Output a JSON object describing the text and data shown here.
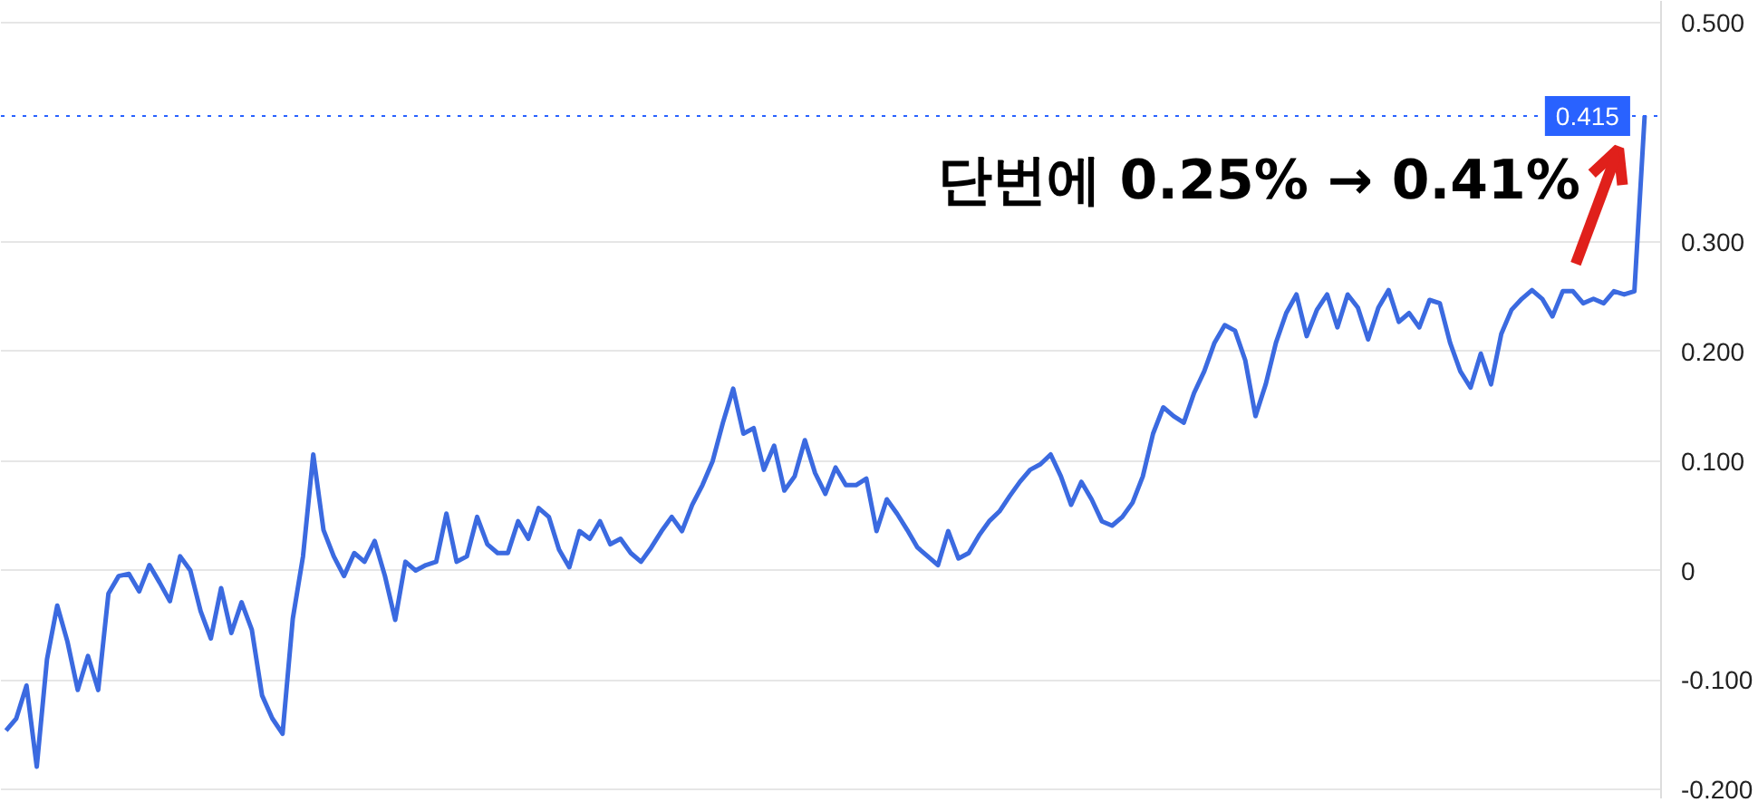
{
  "chart_data": {
    "type": "line",
    "categories": [
      null,
      null,
      null,
      null,
      null,
      null,
      null,
      null,
      null,
      null,
      null,
      null,
      null,
      null,
      null,
      null,
      null,
      null,
      null,
      null,
      null,
      null,
      null,
      null,
      null,
      null,
      null,
      null,
      null,
      null,
      null,
      null,
      null,
      null,
      null,
      null,
      null,
      null,
      null,
      null,
      null,
      null,
      null,
      null,
      null,
      null,
      null,
      null,
      null,
      null,
      null,
      null,
      null,
      null,
      null,
      null,
      null,
      null,
      null,
      null,
      null,
      null,
      null,
      null,
      null,
      null,
      null,
      null,
      null,
      null,
      null,
      null,
      null,
      null,
      null,
      null,
      null,
      null,
      null,
      null,
      null,
      null,
      null,
      null,
      null,
      null,
      null,
      null,
      null,
      null,
      null,
      null,
      null,
      null,
      null,
      null,
      null,
      null,
      null,
      null,
      null,
      null,
      null,
      null,
      null,
      null,
      null,
      null,
      null,
      null,
      null,
      null,
      null,
      null,
      null,
      null,
      null,
      null,
      null,
      null,
      null,
      null,
      null,
      null,
      null,
      null,
      null,
      null,
      null,
      null,
      null,
      null,
      null,
      null,
      null,
      null,
      null,
      null,
      null,
      null,
      null,
      null,
      null,
      null,
      null,
      null,
      null,
      null,
      null,
      null,
      null,
      null,
      null,
      null,
      null,
      null,
      null,
      null,
      null,
      null,
      null
    ],
    "series": [
      {
        "color": "#3b6ae0",
        "values": [
          -0.146,
          -0.135,
          -0.105,
          -0.179,
          -0.081,
          -0.032,
          -0.065,
          -0.109,
          -0.078,
          -0.109,
          -0.021,
          -0.005,
          -0.003,
          -0.019,
          0.005,
          -0.011,
          -0.028,
          0.013,
          0.0,
          -0.037,
          -0.062,
          -0.016,
          -0.057,
          -0.029,
          -0.054,
          -0.114,
          -0.135,
          -0.149,
          -0.044,
          0.013,
          0.106,
          0.037,
          0.013,
          -0.005,
          0.016,
          0.008,
          0.027,
          -0.005,
          -0.045,
          0.008,
          0.0,
          0.005,
          0.008,
          0.052,
          0.008,
          0.013,
          0.049,
          0.024,
          0.016,
          0.016,
          0.045,
          0.029,
          0.057,
          0.049,
          0.019,
          0.003,
          0.036,
          0.029,
          0.045,
          0.024,
          0.029,
          0.016,
          0.008,
          0.021,
          0.036,
          0.049,
          0.036,
          0.06,
          0.078,
          0.1,
          0.135,
          0.166,
          0.125,
          0.13,
          0.092,
          0.114,
          0.073,
          0.086,
          0.119,
          0.089,
          0.07,
          0.094,
          0.078,
          0.078,
          0.084,
          0.036,
          0.065,
          0.052,
          0.037,
          0.021,
          0.013,
          0.005,
          0.036,
          0.011,
          0.016,
          0.032,
          0.045,
          0.054,
          0.068,
          0.081,
          0.092,
          0.097,
          0.106,
          0.086,
          0.06,
          0.081,
          0.065,
          0.045,
          0.041,
          0.049,
          0.062,
          0.086,
          0.125,
          0.149,
          0.141,
          0.135,
          0.162,
          0.182,
          0.208,
          0.224,
          0.219,
          0.192,
          0.141,
          0.17,
          0.208,
          0.235,
          0.252,
          0.214,
          0.238,
          0.252,
          0.222,
          0.252,
          0.24,
          0.211,
          0.24,
          0.256,
          0.227,
          0.235,
          0.222,
          0.247,
          0.244,
          0.208,
          0.182,
          0.167,
          0.198,
          0.17,
          0.216,
          0.238,
          0.248,
          0.256,
          0.248,
          0.232,
          0.255,
          0.255,
          0.244,
          0.248,
          0.244,
          0.255,
          0.252,
          0.255,
          0.415
        ]
      }
    ],
    "ylim": [
      -0.208,
      0.52
    ],
    "yticks": [
      {
        "value": -0.2,
        "label": "-0.200"
      },
      {
        "value": -0.1,
        "label": "-0.100"
      },
      0,
      {
        "value": 0.1,
        "label": "0.100"
      },
      {
        "value": 0.2,
        "label": "0.200"
      },
      {
        "value": 0.3,
        "label": "0.300"
      },
      {
        "value": 0.5,
        "label": "0.500"
      }
    ],
    "ref_lines": [
      {
        "axis": "y",
        "value": 0.415,
        "label": "0.415",
        "color": "#2962ff",
        "line_style": "dotted"
      }
    ],
    "annotations": [
      "단번에 0.25% → 0.41%"
    ],
    "grid": "y",
    "marker": "none",
    "line_style": "solid"
  }
}
